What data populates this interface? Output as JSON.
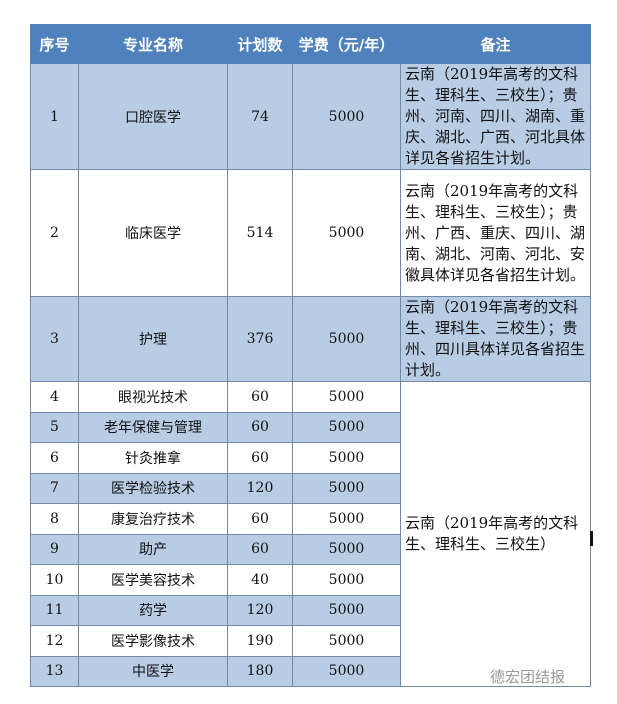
{
  "header": {
    "seq": "序号",
    "major": "专业名称",
    "plan": "计划数",
    "fee": "学费（元/年）",
    "note": "备注"
  },
  "rows": [
    {
      "seq": "1",
      "major": "口腔医学",
      "plan": "74",
      "fee": "5000",
      "note": "云南（2019年高考的文科生、理科生、三校生）；贵州、河南、四川、湖南、重庆、湖北、广西、河北具体详见各省招生计划。"
    },
    {
      "seq": "2",
      "major": "临床医学",
      "plan": "514",
      "fee": "5000",
      "note": "云南（2019年高考的文科生、理科生、三校生）；贵州、广西、重庆、四川、湖南、湖北、河南、河北、安徽具体详见各省招生计划。"
    },
    {
      "seq": "3",
      "major": "护理",
      "plan": "376",
      "fee": "5000",
      "note": "云南（2019年高考的文科生、理科生、三校生）；贵州、四川具体详见各省招生计划。"
    },
    {
      "seq": "4",
      "major": "眼视光技术",
      "plan": "60",
      "fee": "5000"
    },
    {
      "seq": "5",
      "major": "老年保健与管理",
      "plan": "60",
      "fee": "5000"
    },
    {
      "seq": "6",
      "major": "针灸推拿",
      "plan": "60",
      "fee": "5000"
    },
    {
      "seq": "7",
      "major": "医学检验技术",
      "plan": "120",
      "fee": "5000"
    },
    {
      "seq": "8",
      "major": "康复治疗技术",
      "plan": "60",
      "fee": "5000"
    },
    {
      "seq": "9",
      "major": "助产",
      "plan": "60",
      "fee": "5000"
    },
    {
      "seq": "10",
      "major": "医学美容技术",
      "plan": "40",
      "fee": "5000"
    },
    {
      "seq": "11",
      "major": "药学",
      "plan": "120",
      "fee": "5000"
    },
    {
      "seq": "12",
      "major": "医学影像技术",
      "plan": "190",
      "fee": "5000"
    },
    {
      "seq": "13",
      "major": "中医学",
      "plan": "180",
      "fee": "5000"
    }
  ],
  "merged_note": "云南（2019年高考的文科生、理科生、三校生）",
  "watermark": "德宏团结报",
  "colors": {
    "header": "#4f81bd",
    "stripe": "#b8cce4"
  }
}
